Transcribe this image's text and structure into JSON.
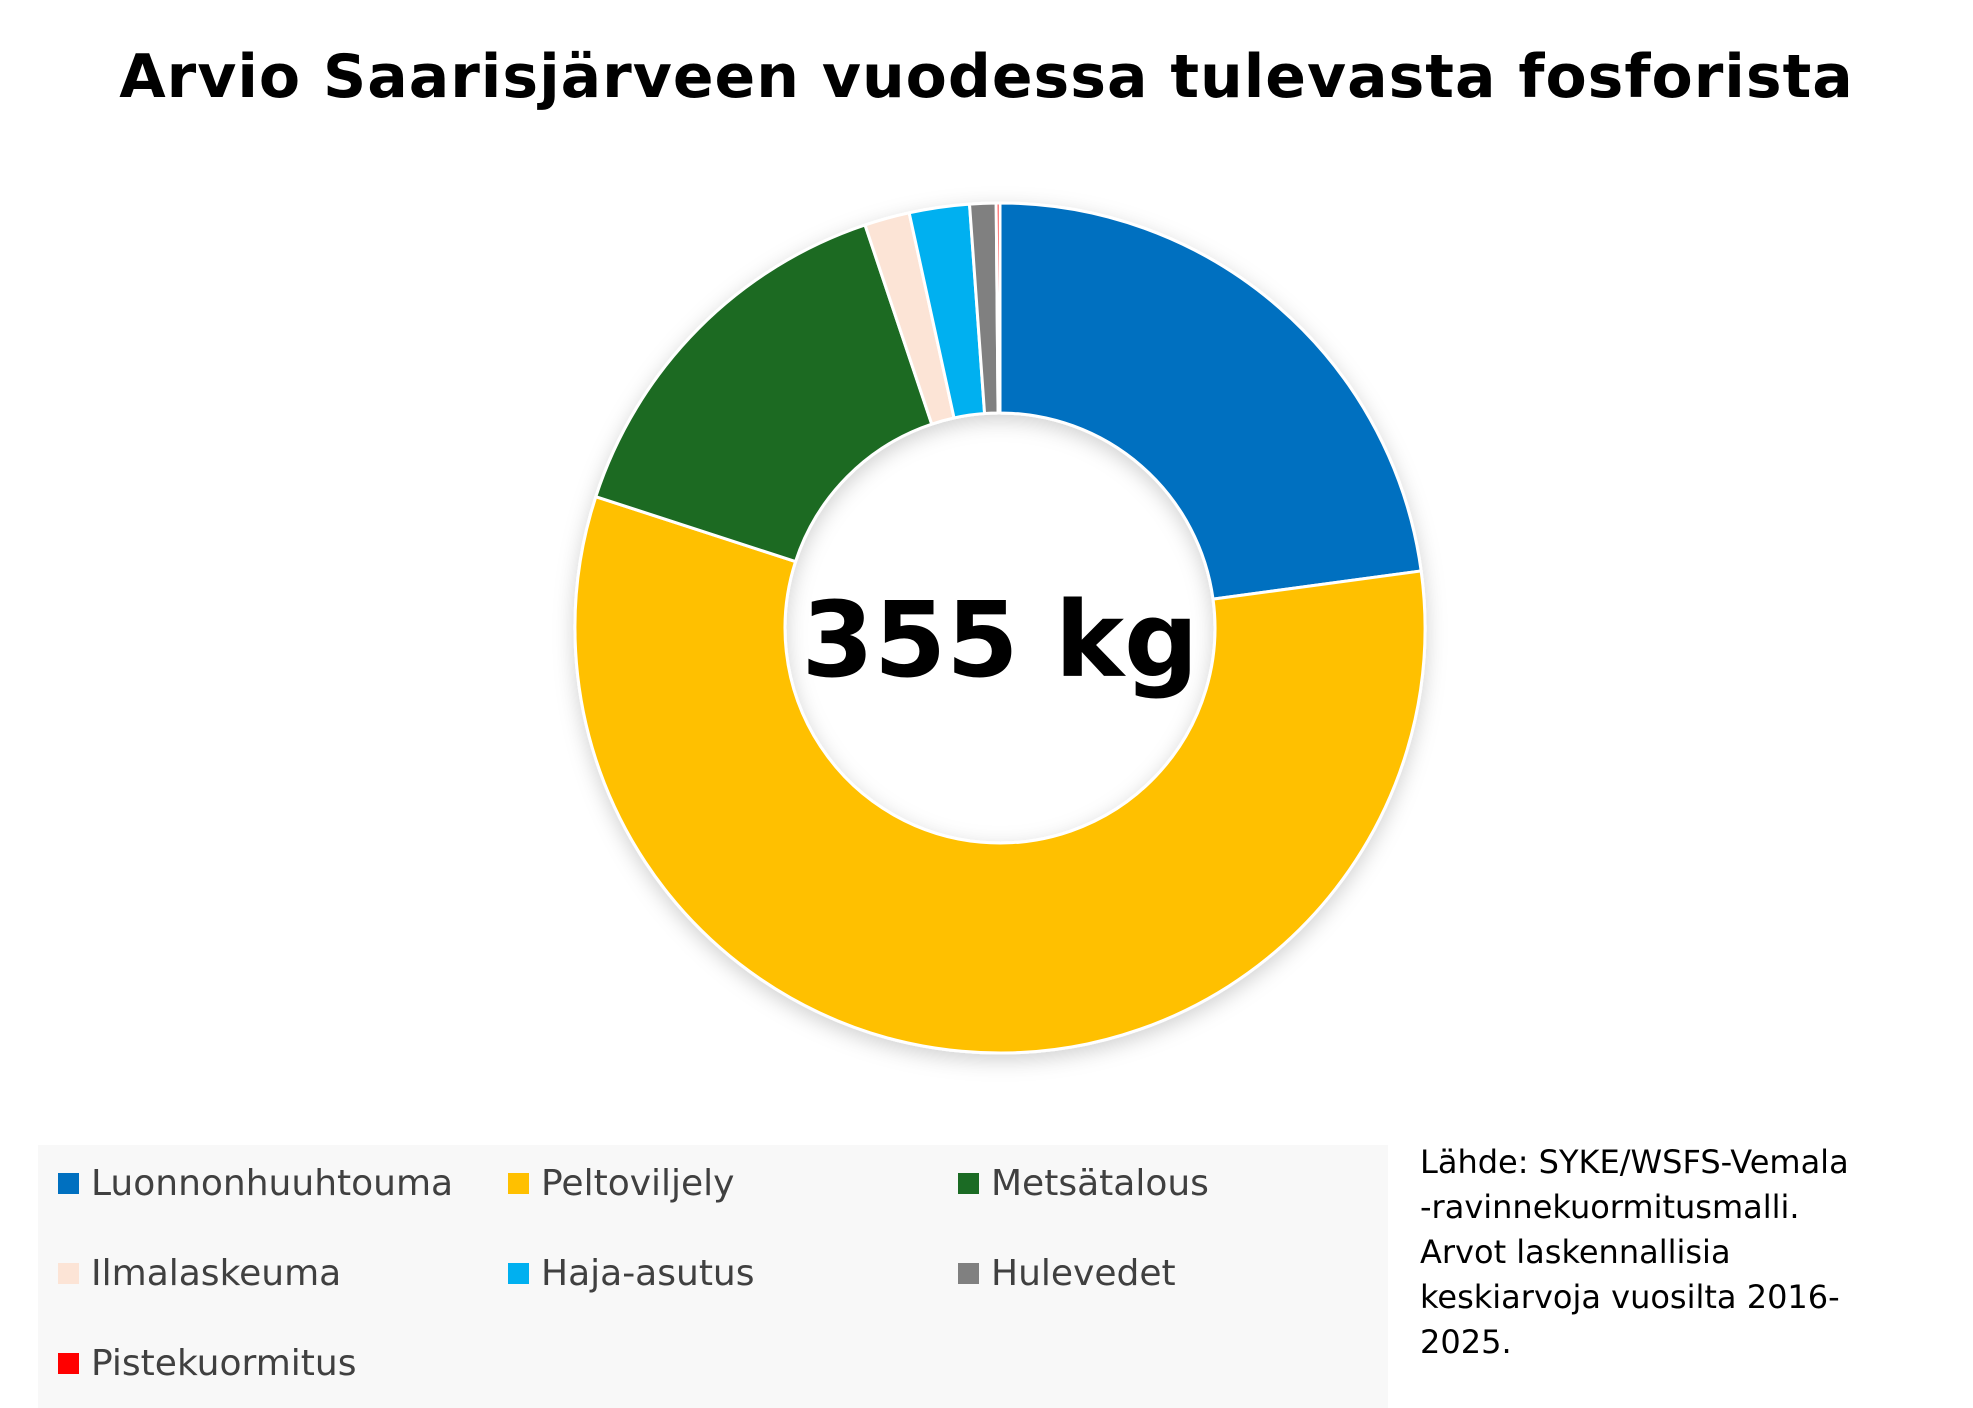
{
  "chart_data": {
    "type": "pie",
    "variant": "donut",
    "title": "Arvio Saarisjärveen vuodessa tulevasta fosforista",
    "center_label": "355 kg",
    "total": 355,
    "unit": "kg",
    "legend_placement": "bottom",
    "categories": [
      "Luonnonhuuhtouma",
      "Peltoviljely",
      "Metsätalous",
      "Ilmalaskeuma",
      "Haja-asutus",
      "Hulevedet",
      "Pistekuormitus"
    ],
    "values": [
      80,
      200,
      52,
      6,
      8,
      3.5,
      0.5
    ],
    "colors": [
      "#0070C0",
      "#FFC000",
      "#1B6B24",
      "#FCE4D6",
      "#00B0F0",
      "#808080",
      "#FF0000"
    ]
  },
  "source_note": {
    "lines": [
      "Lähde: SYKE/WSFS-Vemala",
      "-ravinnekuormitusmalli.",
      "Arvot laskennallisia",
      "keskiarvoja vuosilta 2016-",
      "2025."
    ]
  }
}
